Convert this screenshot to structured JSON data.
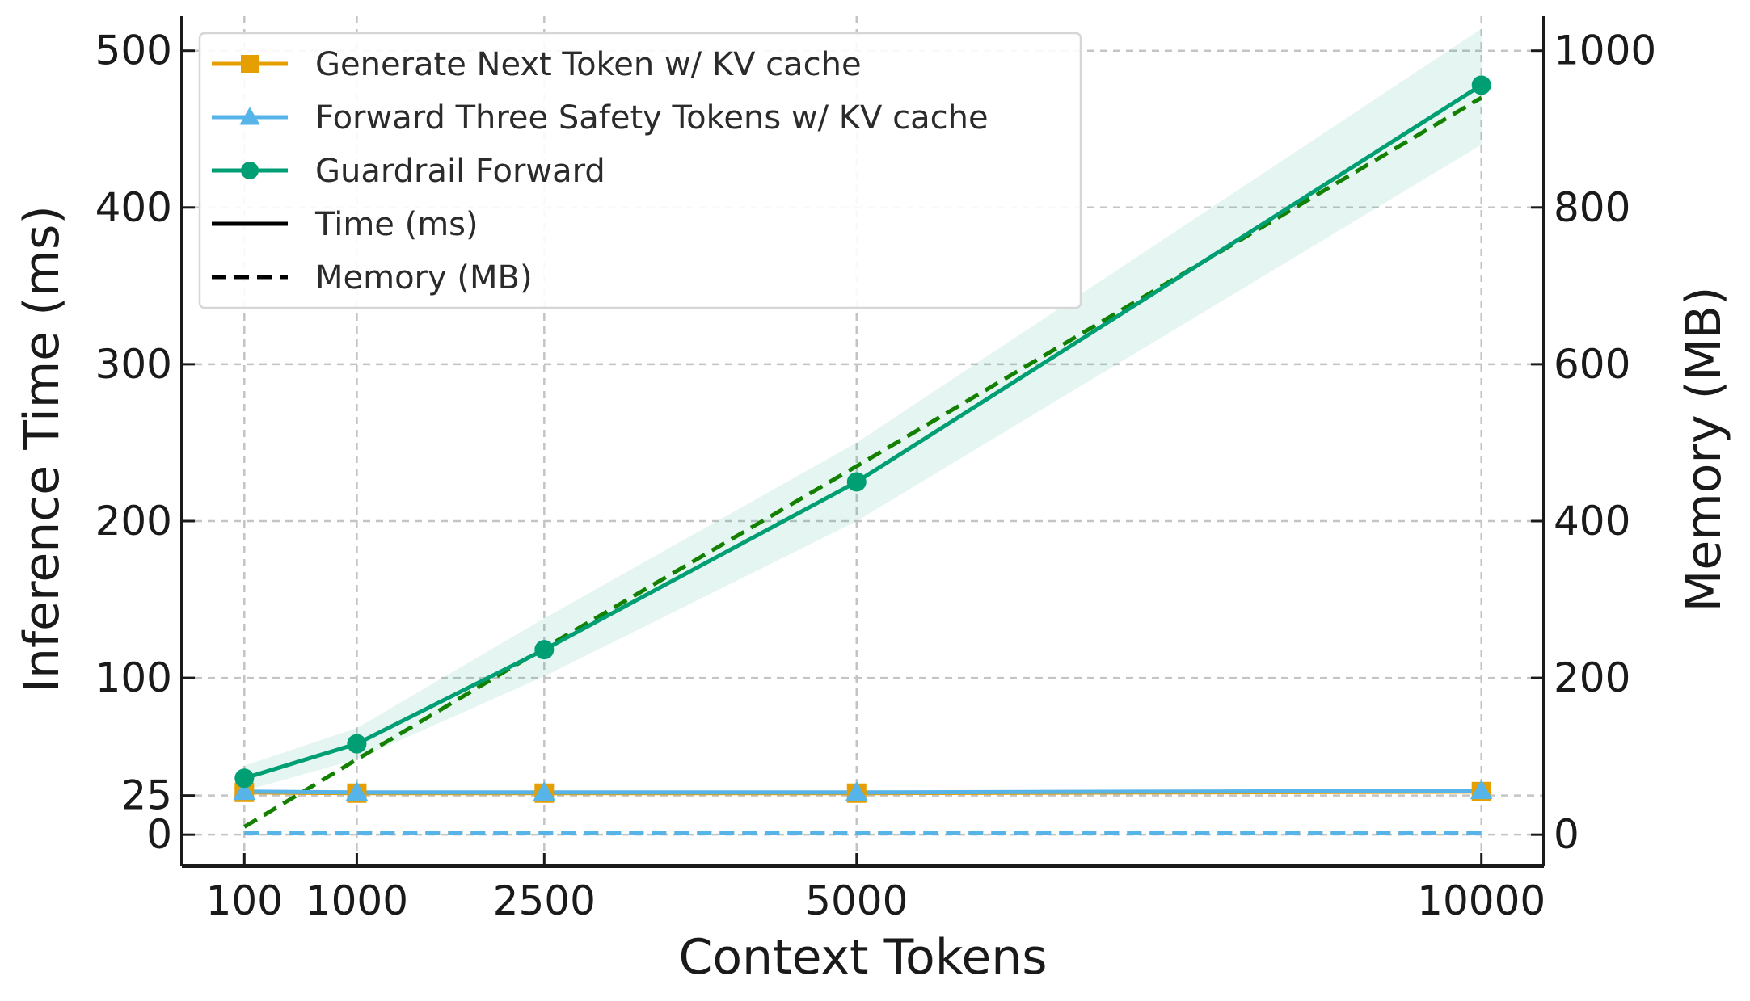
{
  "chart_data": {
    "type": "line",
    "xlabel": "Context Tokens",
    "ylabel_left": "Inference Time (ms)",
    "ylabel_right": "Memory (MB)",
    "x": [
      100,
      1000,
      2500,
      5000,
      10000
    ],
    "x_tick_labels": [
      "100",
      "1000",
      "2500",
      "5000",
      "10000"
    ],
    "xlim": [
      -400,
      10500
    ],
    "ylim_left": [
      -20,
      522
    ],
    "ylim_right": [
      -40,
      1044
    ],
    "left_ticks": [
      0,
      25,
      100,
      200,
      300,
      400,
      500
    ],
    "left_tick_labels": [
      "0",
      "25",
      "100",
      "200",
      "300",
      "400",
      "500"
    ],
    "right_ticks": [
      0,
      200,
      400,
      600,
      800,
      1000
    ],
    "right_tick_labels": [
      "0",
      "200",
      "400",
      "600",
      "800",
      "1000"
    ],
    "grid": true,
    "legend_position": "top-left",
    "series": [
      {
        "name": "Generate Next Token w/ KV cache",
        "color": "#E69F00",
        "marker": "square",
        "time_ms": [
          27,
          26.5,
          26.5,
          26.5,
          27.5
        ],
        "memory_mb": [
          2,
          2,
          2,
          2,
          2
        ]
      },
      {
        "name": "Forward Three Safety Tokens w/ KV cache",
        "color": "#56B4E9",
        "marker": "triangle",
        "time_ms": [
          27.5,
          27,
          27,
          27,
          28
        ],
        "memory_mb": [
          2,
          2,
          2,
          2,
          2
        ]
      },
      {
        "name": "Guardrail Forward",
        "color": "#009E73",
        "marker": "circle",
        "time_ms": [
          36,
          58,
          118,
          225,
          478
        ],
        "time_band_ms": {
          "lower": [
            28,
            48,
            101,
            200,
            440
          ],
          "upper": [
            44,
            68,
            138,
            250,
            514
          ]
        },
        "memory_line_color": "#138000",
        "memory_mb": [
          10,
          96,
          238,
          470,
          940
        ]
      }
    ],
    "legend_style_entries": [
      {
        "label": "Time (ms)",
        "style": "solid"
      },
      {
        "label": "Memory (MB)",
        "style": "dashed"
      }
    ]
  }
}
